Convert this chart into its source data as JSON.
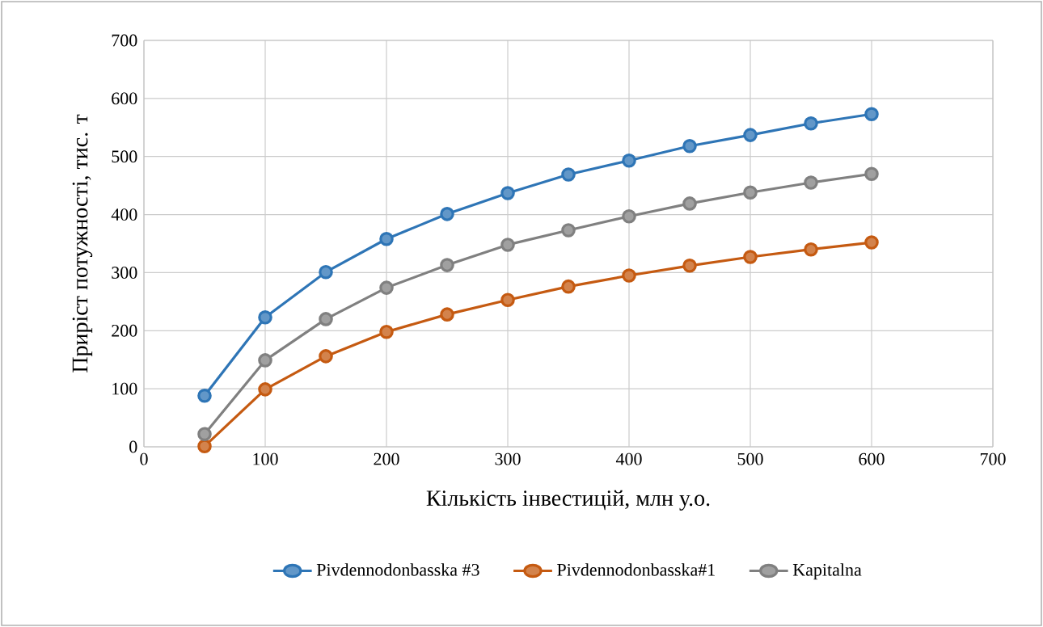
{
  "chart_data": {
    "type": "line",
    "xlabel": "Кількість інвестицій, млн у.о.",
    "ylabel": "Приріст потужності, тис. т",
    "x": [
      50,
      100,
      150,
      200,
      250,
      300,
      350,
      400,
      450,
      500,
      550,
      600
    ],
    "series": [
      {
        "name": "Pivdennodonbasska #3",
        "color": "#2e75b6",
        "values": [
          88,
          223,
          301,
          358,
          401,
          437,
          469,
          493,
          518,
          537,
          557,
          573
        ]
      },
      {
        "name": "Pivdennodonbasska#1",
        "color": "#c55a11",
        "values": [
          1,
          99,
          156,
          198,
          228,
          253,
          276,
          295,
          312,
          327,
          340,
          352
        ]
      },
      {
        "name": "Kapitalna",
        "color": "#808080",
        "values": [
          22,
          149,
          220,
          274,
          313,
          348,
          373,
          397,
          419,
          438,
          455,
          470
        ]
      }
    ],
    "xlim": [
      0,
      700
    ],
    "ylim": [
      0,
      700
    ],
    "xticks": [
      0,
      100,
      200,
      300,
      400,
      500,
      600,
      700
    ],
    "yticks": [
      0,
      100,
      200,
      300,
      400,
      500,
      600,
      700
    ],
    "grid": true,
    "legend": "bottom",
    "marker": "circle",
    "line_style": "solid"
  }
}
